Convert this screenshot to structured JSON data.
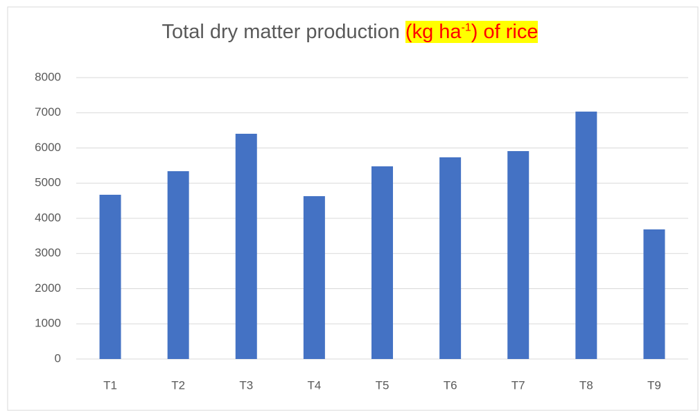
{
  "chart_data": {
    "type": "bar",
    "title": "Total dry matter production",
    "title_highlight": [
      "(kg ha",
      "-1",
      ") of rice"
    ],
    "categories": [
      "T1",
      "T2",
      "T3",
      "T4",
      "T5",
      "T6",
      "T7",
      "T8",
      "T9"
    ],
    "values": [
      4670,
      5340,
      6404,
      4630,
      5478,
      5734,
      5911,
      7034,
      3685
    ],
    "color": "#4472c4",
    "ylim": [
      0,
      8000
    ],
    "yticks": [
      0,
      1000,
      2000,
      3000,
      4000,
      5000,
      6000,
      7000,
      8000
    ],
    "grid": true
  }
}
